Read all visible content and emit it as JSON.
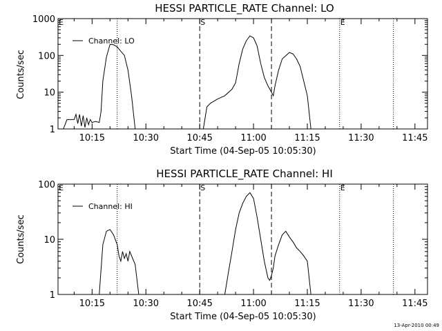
{
  "footer": {
    "timestamp": "13-Apr-2010 00:49"
  },
  "chart_data": [
    {
      "type": "line",
      "title": "HESSI PARTICLE_RATE Channel: LO",
      "xlabel": "Start Time (04-Sep-05 10:05:30)",
      "ylabel": "Counts/sec",
      "xscale": "time",
      "yscale": "log",
      "xlim": [
        "10:05:30",
        "11:48:30"
      ],
      "ylim": [
        1,
        1000
      ],
      "x_ticks": [
        "10:15",
        "10:30",
        "10:45",
        "11:00",
        "11:15",
        "11:30",
        "11:45"
      ],
      "y_ticks": [
        "1",
        "10",
        "100",
        "1000"
      ],
      "legend": {
        "position": "top-left",
        "entries": [
          "Channel: LO"
        ]
      },
      "markers": [
        {
          "time": "10:22",
          "style": "dotted",
          "label": ""
        },
        {
          "time": "10:45",
          "style": "dashed",
          "label": "S"
        },
        {
          "time": "11:05",
          "style": "dashed",
          "label": ""
        },
        {
          "time": "11:24",
          "style": "dotted",
          "label": "E"
        },
        {
          "time": "11:39",
          "style": "dotted",
          "label": ""
        }
      ],
      "corner_labels": [
        {
          "text": "E",
          "time": "10:05:30"
        }
      ],
      "series": [
        {
          "name": "Channel: LO",
          "segments": [
            [
              [
                "10:07",
                1.0
              ],
              [
                "10:08",
                1.8
              ],
              [
                "10:10",
                1.8
              ],
              [
                "10:10:30",
                2.5
              ],
              [
                "10:11",
                1.4
              ],
              [
                "10:11:30",
                2.5
              ],
              [
                "10:12",
                1.2
              ],
              [
                "10:12:30",
                2.3
              ],
              [
                "10:13",
                1.1
              ],
              [
                "10:13:30",
                2.0
              ],
              [
                "10:14",
                1.3
              ],
              [
                "10:14:30",
                1.8
              ],
              [
                "10:15",
                1.5
              ],
              [
                "10:16",
                1.6
              ],
              [
                "10:17",
                1.5
              ],
              [
                "10:17:30",
                3.0
              ],
              [
                "10:18",
                20
              ],
              [
                "10:19",
                90
              ],
              [
                "10:20",
                200
              ],
              [
                "10:21",
                195
              ],
              [
                "10:22",
                170
              ],
              [
                "10:23",
                130
              ],
              [
                "10:24",
                100
              ],
              [
                "10:25",
                40
              ],
              [
                "10:26",
                8
              ],
              [
                "10:27",
                1.0
              ]
            ],
            [
              [
                "10:46",
                1.0
              ],
              [
                "10:47",
                4
              ],
              [
                "10:48",
                5
              ],
              [
                "10:50",
                6.5
              ],
              [
                "10:52",
                8
              ],
              [
                "10:54",
                12
              ],
              [
                "10:55",
                18
              ],
              [
                "10:56",
                60
              ],
              [
                "10:57",
                150
              ],
              [
                "10:58",
                250
              ],
              [
                "10:59",
                340
              ],
              [
                "11:00",
                300
              ],
              [
                "11:01",
                180
              ],
              [
                "11:02",
                60
              ],
              [
                "11:03",
                25
              ],
              [
                "11:04",
                15
              ],
              [
                "11:05",
                10
              ],
              [
                "11:05:30",
                8
              ],
              [
                "11:06",
                15
              ],
              [
                "11:07",
                40
              ],
              [
                "11:08",
                80
              ],
              [
                "11:10",
                120
              ],
              [
                "11:11",
                110
              ],
              [
                "11:12",
                80
              ],
              [
                "11:13",
                50
              ],
              [
                "11:14",
                20
              ],
              [
                "11:15",
                8
              ],
              [
                "11:16",
                1.0
              ]
            ]
          ]
        }
      ]
    },
    {
      "type": "line",
      "title": "HESSI PARTICLE_RATE Channel: HI",
      "xlabel": "Start Time (04-Sep-05 10:05:30)",
      "ylabel": "Counts/sec",
      "xscale": "time",
      "yscale": "log",
      "xlim": [
        "10:05:30",
        "11:48:30"
      ],
      "ylim": [
        1,
        100
      ],
      "x_ticks": [
        "10:15",
        "10:30",
        "10:45",
        "11:00",
        "11:15",
        "11:30",
        "11:45"
      ],
      "y_ticks": [
        "1",
        "10",
        "100"
      ],
      "legend": {
        "position": "top-left",
        "entries": [
          "Channel: HI"
        ]
      },
      "markers": [
        {
          "time": "10:22",
          "style": "dotted",
          "label": ""
        },
        {
          "time": "10:45",
          "style": "dashed",
          "label": "S"
        },
        {
          "time": "11:05",
          "style": "dashed",
          "label": ""
        },
        {
          "time": "11:24",
          "style": "dotted",
          "label": "E"
        },
        {
          "time": "11:39",
          "style": "dotted",
          "label": ""
        }
      ],
      "corner_labels": [
        {
          "text": "E",
          "time": "10:05:30"
        }
      ],
      "series": [
        {
          "name": "Channel: HI",
          "segments": [
            [
              [
                "10:17",
                1.0
              ],
              [
                "10:18",
                8
              ],
              [
                "10:19",
                14
              ],
              [
                "10:20",
                15
              ],
              [
                "10:21",
                12
              ],
              [
                "10:22",
                8
              ],
              [
                "10:22:30",
                5
              ],
              [
                "10:23",
                4
              ],
              [
                "10:23:30",
                6
              ],
              [
                "10:24",
                4.5
              ],
              [
                "10:24:30",
                5.5
              ],
              [
                "10:25",
                4
              ],
              [
                "10:25:30",
                6
              ],
              [
                "10:26",
                5
              ],
              [
                "10:27",
                3.5
              ],
              [
                "10:28",
                1.0
              ]
            ],
            [
              [
                "10:52",
                1.0
              ],
              [
                "10:53",
                2.5
              ],
              [
                "10:54",
                6
              ],
              [
                "10:55",
                15
              ],
              [
                "10:56",
                30
              ],
              [
                "10:57",
                45
              ],
              [
                "10:58",
                60
              ],
              [
                "10:59",
                70
              ],
              [
                "11:00",
                55
              ],
              [
                "11:01",
                25
              ],
              [
                "11:02",
                10
              ],
              [
                "11:03",
                4
              ],
              [
                "11:04",
                2
              ],
              [
                "11:04:30",
                1.8
              ],
              [
                "11:05",
                2.2
              ],
              [
                "11:05:30",
                3
              ],
              [
                "11:06",
                5
              ],
              [
                "11:07",
                8
              ],
              [
                "11:08",
                12
              ],
              [
                "11:09",
                14
              ],
              [
                "11:10",
                11
              ],
              [
                "11:11",
                9
              ],
              [
                "11:12",
                7
              ],
              [
                "11:13",
                6
              ],
              [
                "11:14",
                5
              ],
              [
                "11:15",
                4
              ],
              [
                "11:15:30",
                2
              ],
              [
                "11:16",
                1.0
              ]
            ]
          ]
        }
      ]
    }
  ]
}
